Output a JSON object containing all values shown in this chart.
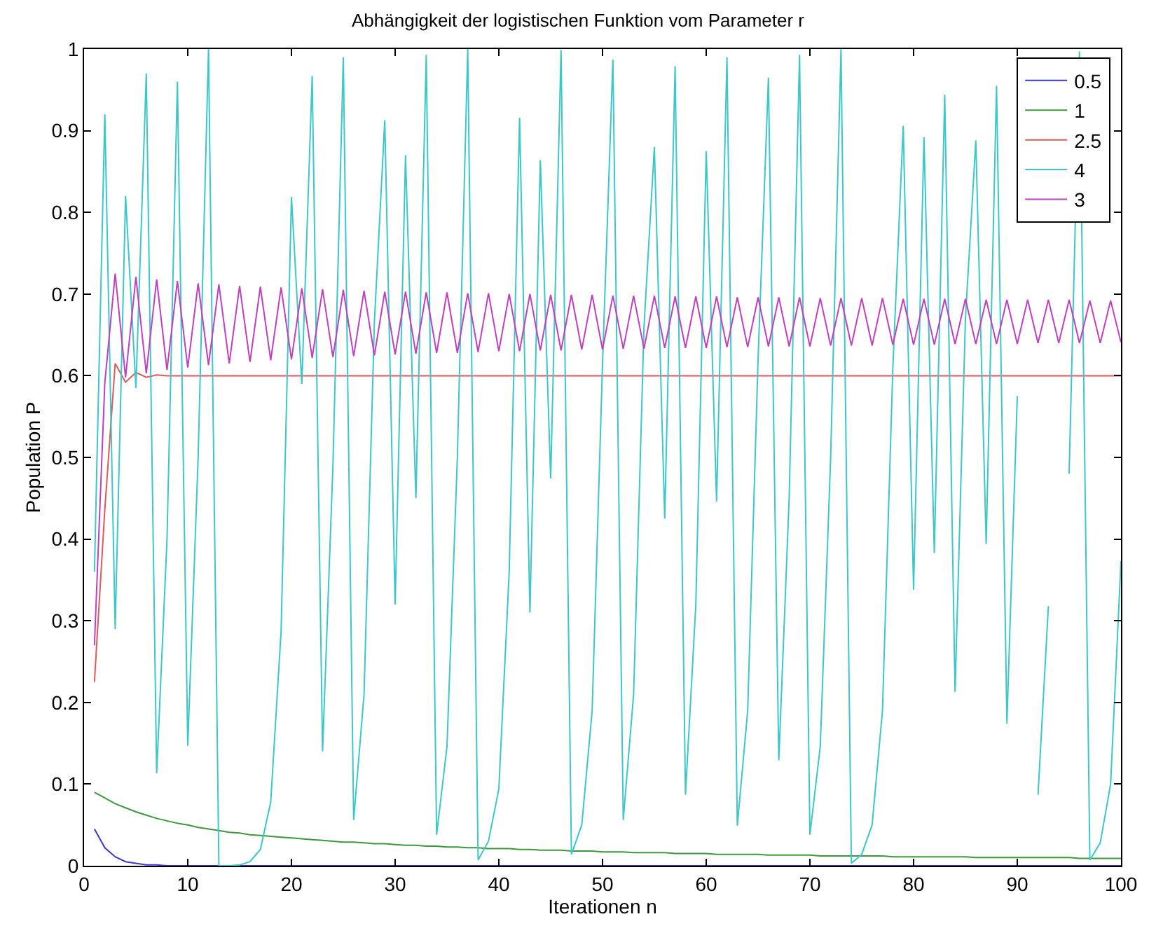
{
  "chart_data": {
    "type": "line",
    "title": "Abhängigkeit der logistischen Funktion vom Parameter r",
    "xlabel": "Iterationen n",
    "ylabel": "Population P",
    "x": [
      1,
      2,
      3,
      4,
      5,
      6,
      7,
      8,
      9,
      10,
      11,
      12,
      13,
      14,
      15,
      16,
      17,
      18,
      19,
      20,
      21,
      22,
      23,
      24,
      25,
      26,
      27,
      28,
      29,
      30,
      31,
      32,
      33,
      34,
      35,
      36,
      37,
      38,
      39,
      40,
      41,
      42,
      43,
      44,
      45,
      46,
      47,
      48,
      49,
      50,
      51,
      52,
      53,
      54,
      55,
      56,
      57,
      58,
      59,
      60,
      61,
      62,
      63,
      64,
      65,
      66,
      67,
      68,
      69,
      70,
      71,
      72,
      73,
      74,
      75,
      76,
      77,
      78,
      79,
      80,
      81,
      82,
      83,
      84,
      85,
      86,
      87,
      88,
      89,
      90,
      91,
      92,
      93,
      94,
      95,
      96,
      97,
      98,
      99,
      100
    ],
    "series": [
      {
        "name": "0.5",
        "color": "#3a3ad0",
        "values": [
          0.045,
          0.022,
          0.011,
          0.005,
          0.003,
          0.001,
          0.001,
          0,
          0,
          0,
          0,
          0,
          0,
          0,
          0,
          0,
          0,
          0,
          0,
          0,
          0,
          0,
          0,
          0,
          0,
          0,
          0,
          0,
          0,
          0,
          0,
          0,
          0,
          0,
          0,
          0,
          0,
          0,
          0,
          0,
          0,
          0,
          0,
          0,
          0,
          0,
          0,
          0,
          0,
          0,
          0,
          0,
          0,
          0,
          0,
          0,
          0,
          0,
          0,
          0,
          0,
          0,
          0,
          0,
          0,
          0,
          0,
          0,
          0,
          0,
          0,
          0,
          0,
          0,
          0,
          0,
          0,
          0,
          0,
          0,
          0,
          0,
          0,
          0,
          0,
          0,
          0,
          0,
          0,
          0,
          0,
          0,
          0,
          0,
          0,
          0,
          0,
          0,
          0,
          0
        ]
      },
      {
        "name": "1",
        "color": "#3c9a3c",
        "values": [
          0.09,
          0.083,
          0.076,
          0.071,
          0.066,
          0.062,
          0.058,
          0.055,
          0.052,
          0.05,
          0.047,
          0.045,
          0.043,
          0.041,
          0.04,
          0.038,
          0.037,
          0.036,
          0.035,
          0.034,
          0.033,
          0.032,
          0.031,
          0.03,
          0.029,
          0.029,
          0.028,
          0.027,
          0.027,
          0.026,
          0.025,
          0.025,
          0.024,
          0.024,
          0.023,
          0.023,
          0.022,
          0.022,
          0.021,
          0.021,
          0.021,
          0.02,
          0.02,
          0.019,
          0.019,
          0.019,
          0.018,
          0.018,
          0.018,
          0.017,
          0.017,
          0.017,
          0.016,
          0.016,
          0.016,
          0.016,
          0.015,
          0.015,
          0.015,
          0.015,
          0.014,
          0.014,
          0.014,
          0.014,
          0.014,
          0.013,
          0.013,
          0.013,
          0.013,
          0.013,
          0.012,
          0.012,
          0.012,
          0.012,
          0.012,
          0.012,
          0.012,
          0.011,
          0.011,
          0.011,
          0.011,
          0.011,
          0.011,
          0.011,
          0.011,
          0.01,
          0.01,
          0.01,
          0.01,
          0.01,
          0.01,
          0.01,
          0.01,
          0.01,
          0.01,
          0.009,
          0.009,
          0.009,
          0.009,
          0.009
        ]
      },
      {
        "name": "2.5",
        "color": "#e05a5a",
        "values": [
          0.225,
          0.436,
          0.615,
          0.592,
          0.604,
          0.598,
          0.601,
          0.6,
          0.6,
          0.6,
          0.6,
          0.6,
          0.6,
          0.6,
          0.6,
          0.6,
          0.6,
          0.6,
          0.6,
          0.6,
          0.6,
          0.6,
          0.6,
          0.6,
          0.6,
          0.6,
          0.6,
          0.6,
          0.6,
          0.6,
          0.6,
          0.6,
          0.6,
          0.6,
          0.6,
          0.6,
          0.6,
          0.6,
          0.6,
          0.6,
          0.6,
          0.6,
          0.6,
          0.6,
          0.6,
          0.6,
          0.6,
          0.6,
          0.6,
          0.6,
          0.6,
          0.6,
          0.6,
          0.6,
          0.6,
          0.6,
          0.6,
          0.6,
          0.6,
          0.6,
          0.6,
          0.6,
          0.6,
          0.6,
          0.6,
          0.6,
          0.6,
          0.6,
          0.6,
          0.6,
          0.6,
          0.6,
          0.6,
          0.6,
          0.6,
          0.6,
          0.6,
          0.6,
          0.6,
          0.6,
          0.6,
          0.6,
          0.6,
          0.6,
          0.6,
          0.6,
          0.6,
          0.6,
          0.6,
          0.6,
          0.6,
          0.6,
          0.6,
          0.6,
          0.6,
          0.6,
          0.6,
          0.6,
          0.6,
          0.6
        ]
      },
      {
        "name": "4",
        "color": "#3cc8c8",
        "values": [
          0.36,
          0.92,
          0.29,
          0.82,
          0.585,
          0.97,
          0.113,
          0.4,
          0.96,
          0.147,
          0.5,
          1.0,
          0,
          0,
          0.001,
          0.005,
          0.02,
          0.078,
          0.287,
          0.819,
          0.59,
          0.967,
          0.14,
          0.49,
          0.99,
          0.056,
          0.21,
          0.666,
          0.913,
          0.32,
          0.87,
          0.45,
          0.993,
          0.038,
          0.146,
          0.5,
          1.0,
          0.007,
          0.03,
          0.094,
          0.36,
          0.916,
          0.31,
          0.864,
          0.474,
          0.999,
          0.014,
          0.05,
          0.19,
          0.615,
          0.987,
          0.056,
          0.21,
          0.66,
          0.88,
          0.425,
          0.979,
          0.087,
          0.32,
          0.875,
          0.446,
          0.99,
          0.049,
          0.19,
          0.62,
          0.965,
          0.129,
          0.45,
          0.993,
          0.038,
          0.146,
          0.5,
          1.0,
          0.003,
          0.014,
          0.05,
          0.19,
          0.61,
          0.906,
          0.338,
          0.892,
          0.383,
          0.944,
          0.213,
          0.67,
          0.888,
          0.394,
          0.955,
          0.174,
          0.575,
          null,
          0.087,
          0.318,
          null,
          0.48,
          0.997,
          0.007,
          0.028,
          0.1,
          0.373
        ]
      },
      {
        "name": "3",
        "color": "#c040c0",
        "values": [
          0.27,
          0.591,
          0.725,
          0.598,
          0.721,
          0.603,
          0.718,
          0.607,
          0.716,
          0.61,
          0.713,
          0.613,
          0.712,
          0.615,
          0.71,
          0.617,
          0.709,
          0.619,
          0.708,
          0.62,
          0.707,
          0.622,
          0.706,
          0.623,
          0.705,
          0.624,
          0.704,
          0.625,
          0.703,
          0.626,
          0.703,
          0.627,
          0.702,
          0.628,
          0.702,
          0.628,
          0.701,
          0.629,
          0.701,
          0.63,
          0.7,
          0.63,
          0.7,
          0.631,
          0.699,
          0.631,
          0.699,
          0.632,
          0.699,
          0.632,
          0.698,
          0.633,
          0.698,
          0.633,
          0.698,
          0.634,
          0.697,
          0.634,
          0.697,
          0.634,
          0.697,
          0.635,
          0.696,
          0.635,
          0.696,
          0.636,
          0.696,
          0.636,
          0.696,
          0.636,
          0.695,
          0.637,
          0.695,
          0.637,
          0.695,
          0.637,
          0.695,
          0.638,
          0.694,
          0.638,
          0.694,
          0.638,
          0.694,
          0.639,
          0.694,
          0.639,
          0.693,
          0.639,
          0.693,
          0.639,
          0.693,
          0.64,
          0.693,
          0.64,
          0.693,
          0.64,
          0.692,
          0.64,
          0.692,
          0.641
        ]
      }
    ],
    "xlim": [
      0,
      100
    ],
    "xticks": [
      0,
      10,
      20,
      30,
      40,
      50,
      60,
      70,
      80,
      90,
      100
    ],
    "ylim": [
      0,
      1
    ],
    "yticks": [
      0,
      0.1,
      0.2,
      0.3,
      0.4,
      0.5,
      0.6,
      0.7,
      0.8,
      0.9,
      1
    ],
    "legend": "top right",
    "marker": "none",
    "line_style": "solid"
  }
}
